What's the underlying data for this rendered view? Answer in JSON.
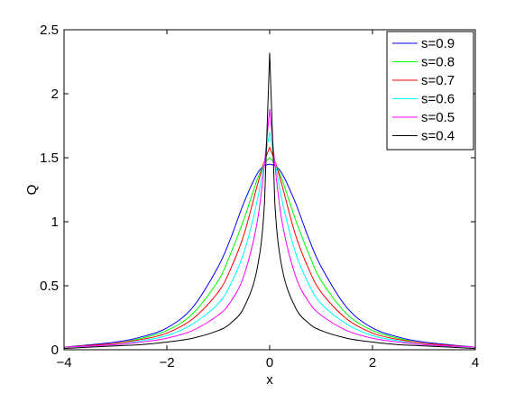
{
  "chart_data": {
    "type": "line",
    "title": "",
    "xlabel": "x",
    "ylabel": "Q",
    "xlim": [
      -4,
      4
    ],
    "ylim": [
      0,
      2.5
    ],
    "x_ticks": [
      "-4",
      "-2",
      "0",
      "2",
      "4"
    ],
    "y_ticks": [
      "0",
      "0.5",
      "1",
      "1.5",
      "2",
      "2.5"
    ],
    "grid": false,
    "legend_position": "top-right",
    "x": [
      -4,
      -3,
      -2.5,
      -2,
      -1.5,
      -1,
      -0.75,
      -0.5,
      -0.25,
      -0.1,
      0,
      0.1,
      0.25,
      0.5,
      0.75,
      1,
      1.5,
      2,
      2.5,
      3,
      4
    ],
    "series": [
      {
        "name": "s=0.9",
        "color": "#0000ff",
        "values": [
          0.02,
          0.06,
          0.1,
          0.17,
          0.33,
          0.65,
          0.88,
          1.15,
          1.37,
          1.44,
          1.45,
          1.44,
          1.37,
          1.15,
          0.88,
          0.65,
          0.33,
          0.17,
          0.1,
          0.06,
          0.02
        ]
      },
      {
        "name": "s=0.8",
        "color": "#00ff00",
        "values": [
          0.02,
          0.05,
          0.09,
          0.15,
          0.28,
          0.54,
          0.76,
          1.02,
          1.32,
          1.46,
          1.5,
          1.46,
          1.32,
          1.02,
          0.76,
          0.54,
          0.28,
          0.15,
          0.09,
          0.05,
          0.02
        ]
      },
      {
        "name": "s=0.7",
        "color": "#ff0000",
        "values": [
          0.02,
          0.05,
          0.08,
          0.13,
          0.24,
          0.45,
          0.64,
          0.9,
          1.27,
          1.48,
          1.58,
          1.48,
          1.27,
          0.9,
          0.64,
          0.45,
          0.24,
          0.13,
          0.08,
          0.05,
          0.02
        ]
      },
      {
        "name": "s=0.6",
        "color": "#00ffff",
        "values": [
          0.02,
          0.04,
          0.07,
          0.11,
          0.2,
          0.36,
          0.52,
          0.76,
          1.15,
          1.48,
          1.7,
          1.48,
          1.15,
          0.76,
          0.52,
          0.36,
          0.2,
          0.11,
          0.07,
          0.04,
          0.02
        ]
      },
      {
        "name": "s=0.5",
        "color": "#ff00ff",
        "values": [
          0.02,
          0.04,
          0.06,
          0.09,
          0.15,
          0.27,
          0.38,
          0.58,
          0.98,
          1.45,
          1.88,
          1.45,
          0.98,
          0.58,
          0.38,
          0.27,
          0.15,
          0.09,
          0.06,
          0.04,
          0.02
        ]
      },
      {
        "name": "s=0.4",
        "color": "#000000",
        "values": [
          0.01,
          0.03,
          0.04,
          0.06,
          0.09,
          0.15,
          0.21,
          0.33,
          0.62,
          1.15,
          2.32,
          1.15,
          0.62,
          0.33,
          0.21,
          0.15,
          0.09,
          0.06,
          0.04,
          0.03,
          0.01
        ]
      }
    ]
  }
}
